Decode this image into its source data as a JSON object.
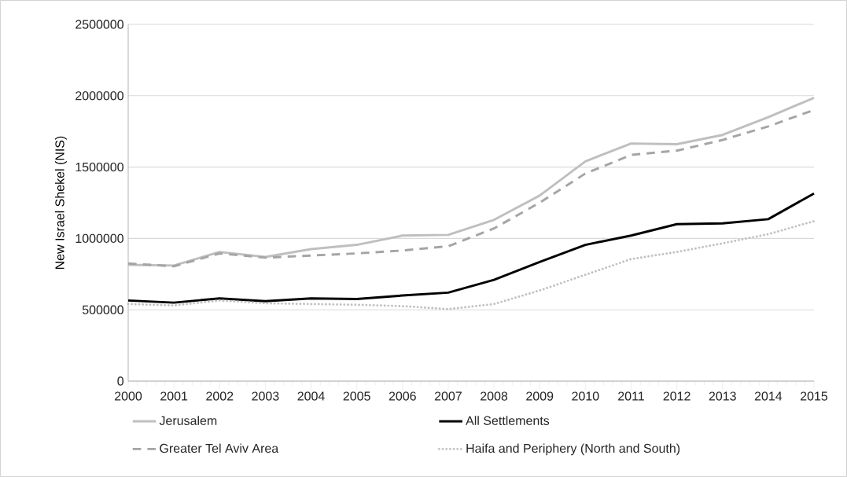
{
  "chart_data": {
    "type": "line",
    "ylabel": "New Israel Shekel (NIS)",
    "categories": [
      "2000",
      "2001",
      "2002",
      "2003",
      "2004",
      "2005",
      "2006",
      "2007",
      "2008",
      "2009",
      "2010",
      "2011",
      "2012",
      "2013",
      "2014",
      "2015"
    ],
    "series": [
      {
        "name": "Jerusalem",
        "color": "#bfbfbf",
        "line_style": "solid",
        "values": [
          815000,
          810000,
          905000,
          870000,
          925000,
          955000,
          1020000,
          1025000,
          1130000,
          1300000,
          1540000,
          1665000,
          1660000,
          1725000,
          1850000,
          1985000
        ]
      },
      {
        "name": "All Settlements",
        "color": "#000000",
        "line_style": "solid",
        "values": [
          565000,
          550000,
          580000,
          560000,
          580000,
          575000,
          600000,
          620000,
          710000,
          835000,
          955000,
          1020000,
          1100000,
          1105000,
          1135000,
          1315000
        ]
      },
      {
        "name": "Greater Tel Aviv Area",
        "color": "#a5a5a5",
        "line_style": "dashed",
        "values": [
          825000,
          805000,
          895000,
          865000,
          880000,
          895000,
          915000,
          945000,
          1070000,
          1250000,
          1455000,
          1585000,
          1615000,
          1690000,
          1785000,
          1900000
        ]
      },
      {
        "name": "Haifa and Periphery (North and South)",
        "color": "#c0c0c0",
        "line_style": "dotted",
        "values": [
          540000,
          530000,
          565000,
          545000,
          540000,
          535000,
          525000,
          505000,
          540000,
          635000,
          745000,
          855000,
          905000,
          965000,
          1030000,
          1120000
        ]
      }
    ],
    "ylim": [
      0,
      2500000
    ],
    "yticks": [
      0,
      500000,
      1000000,
      1500000,
      2000000,
      2500000
    ],
    "grid": "y",
    "legend": "bottom",
    "marker": "none"
  }
}
